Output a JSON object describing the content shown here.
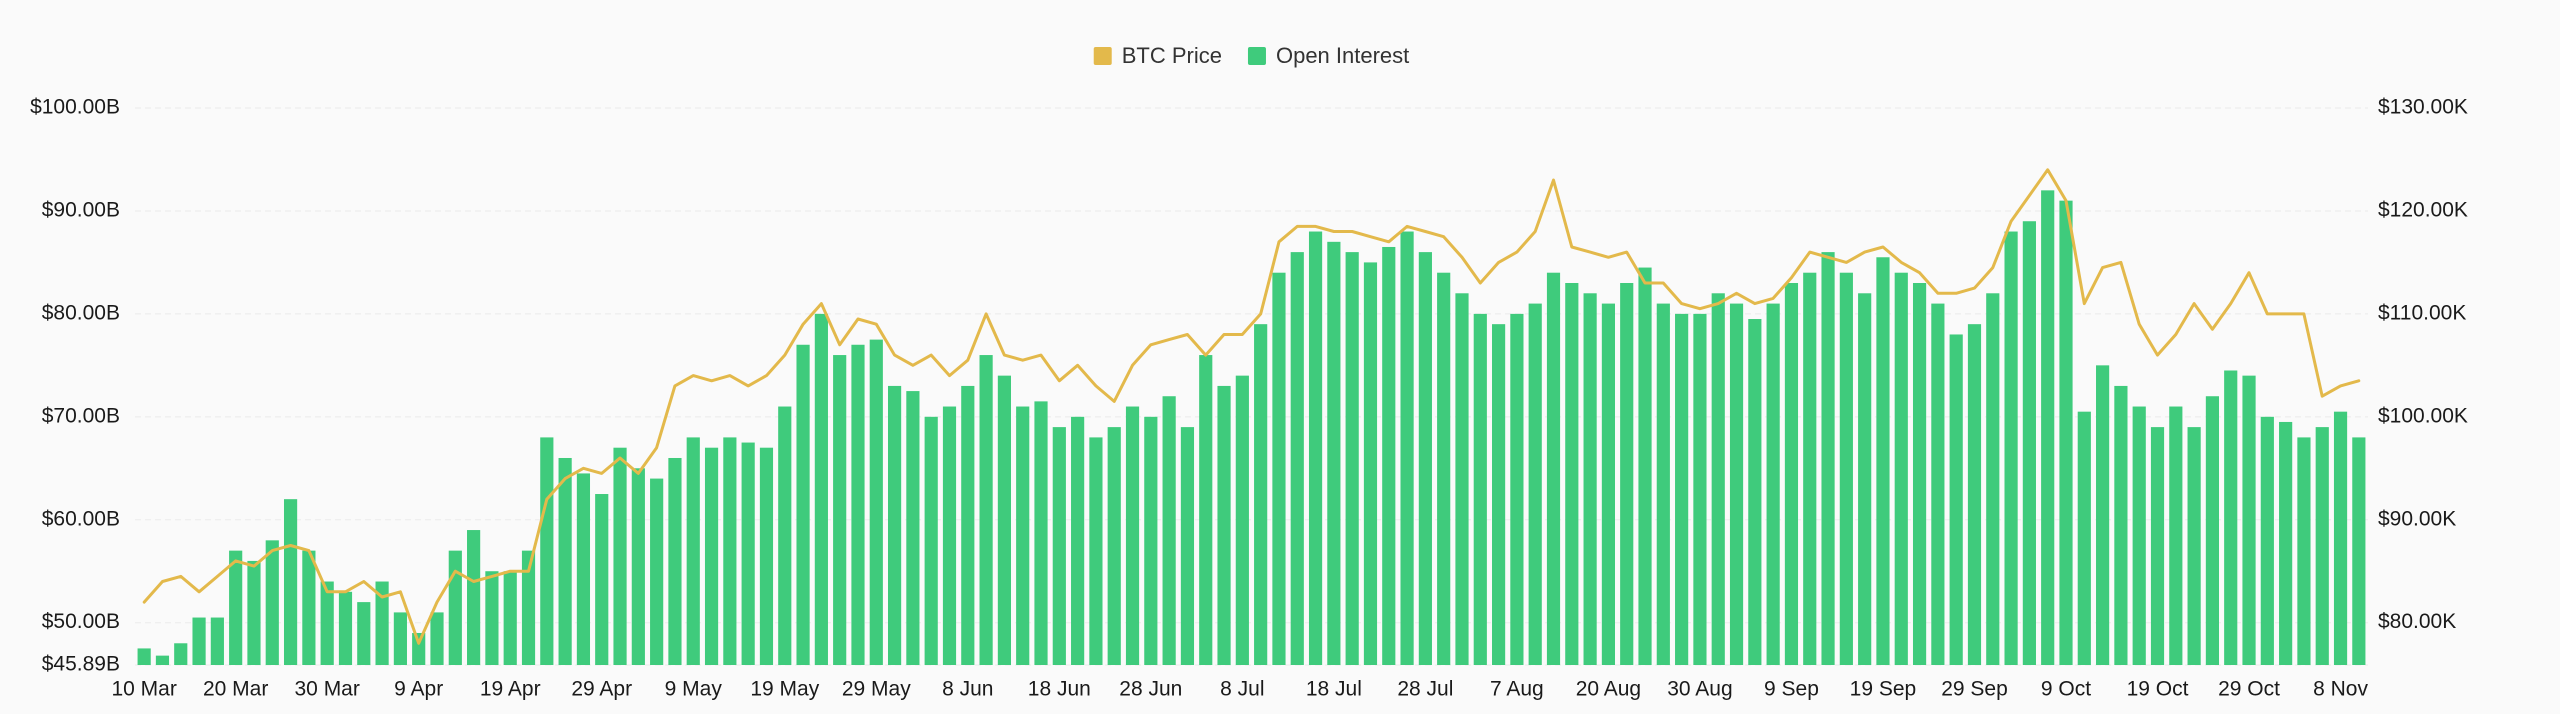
{
  "chart_data": {
    "type": "bar",
    "legend": "top-center",
    "grid": true,
    "categories": [
      "10 Mar",
      null,
      null,
      null,
      null,
      "20 Mar",
      null,
      null,
      null,
      null,
      "30 Mar",
      null,
      null,
      null,
      null,
      "9 Apr",
      null,
      null,
      null,
      null,
      "19 Apr",
      null,
      null,
      null,
      null,
      "29 Apr",
      null,
      null,
      null,
      null,
      "9 May",
      null,
      null,
      null,
      null,
      "19 May",
      null,
      null,
      null,
      null,
      "29 May",
      null,
      null,
      null,
      null,
      "8 Jun",
      null,
      null,
      null,
      null,
      "18 Jun",
      null,
      null,
      null,
      null,
      "28 Jun",
      null,
      null,
      null,
      null,
      "8 Jul",
      null,
      null,
      null,
      null,
      "18 Jul",
      null,
      null,
      null,
      null,
      "28 Jul",
      null,
      null,
      null,
      null,
      "7 Aug",
      null,
      null,
      null,
      null,
      "20 Aug",
      null,
      null,
      null,
      null,
      "30 Aug",
      null,
      null,
      null,
      null,
      "9 Sep",
      null,
      null,
      null,
      null,
      "19 Sep",
      null,
      null,
      null,
      null,
      "29 Sep",
      null,
      null,
      null,
      null,
      "9 Oct",
      null,
      null,
      null,
      null,
      "19 Oct",
      null,
      null,
      null,
      null,
      "29 Oct",
      null,
      null,
      null,
      null,
      "8 Nov",
      null
    ],
    "ylim": [
      45.89,
      100
    ],
    "yticks": [
      {
        "value": 45.89,
        "label": "$45.89B"
      },
      {
        "value": 50,
        "label": "$50.00B"
      },
      {
        "value": 60,
        "label": "$60.00B"
      },
      {
        "value": 70,
        "label": "$70.00B"
      },
      {
        "value": 80,
        "label": "$80.00B"
      },
      {
        "value": 90,
        "label": "$90.00B"
      },
      {
        "value": 100,
        "label": "$100.00B"
      }
    ],
    "y2lim": [
      75.89,
      130
    ],
    "y2ticks": [
      {
        "value": 80,
        "label": "$80.00K"
      },
      {
        "value": 90,
        "label": "$90.00K"
      },
      {
        "value": 100,
        "label": "$100.00K"
      },
      {
        "value": 110,
        "label": "$110.00K"
      },
      {
        "value": 120,
        "label": "$120.00K"
      },
      {
        "value": 130,
        "label": "$130.00K"
      }
    ],
    "series": [
      {
        "name": "BTC Price",
        "color": "#e3b94b",
        "type": "line",
        "axis": "y2",
        "values": [
          82,
          84,
          84.5,
          83,
          84.5,
          86,
          85.5,
          87,
          87.5,
          87,
          83,
          83,
          84,
          82.5,
          83,
          78,
          82,
          85,
          84,
          84.5,
          85,
          85,
          92,
          94,
          95,
          94.5,
          96,
          94.5,
          97,
          103,
          104,
          103.5,
          104,
          103,
          104,
          106,
          109,
          111,
          107,
          109.5,
          109,
          106,
          105,
          106,
          104,
          105.5,
          110,
          106,
          105.5,
          106,
          103.5,
          105,
          103,
          101.5,
          105,
          107,
          107.5,
          108,
          106,
          108,
          108,
          110,
          117,
          118.5,
          118.5,
          118,
          118,
          117.5,
          117,
          118.5,
          118,
          117.5,
          115.5,
          113,
          115,
          116,
          118,
          123,
          116.5,
          116,
          115.5,
          116,
          113,
          113,
          111,
          110.5,
          111,
          112,
          111,
          111.5,
          113.5,
          116,
          115.5,
          115,
          116,
          116.5,
          115,
          114,
          112,
          112,
          112.5,
          114.5,
          119,
          121.5,
          124,
          121,
          111,
          114.5,
          115,
          109,
          106,
          108,
          111,
          108.5,
          111,
          114,
          110,
          110,
          110,
          102,
          103,
          103.5
        ]
      },
      {
        "name": "Open Interest",
        "color": "#3fcb7c",
        "type": "bar",
        "values": [
          47.5,
          46.8,
          48,
          50.5,
          50.5,
          57,
          56,
          58,
          62,
          57,
          54,
          53,
          52,
          54,
          51,
          49,
          51,
          57,
          59,
          55,
          55,
          57,
          68,
          66,
          64.5,
          62.5,
          67,
          65,
          64,
          66,
          68,
          67,
          68,
          67.5,
          67,
          71,
          77,
          80,
          76,
          77,
          77.5,
          73,
          72.5,
          70,
          71,
          73,
          76,
          74,
          71,
          71.5,
          69,
          70,
          68,
          69,
          71,
          70,
          72,
          69,
          76,
          73,
          74,
          79,
          84,
          86,
          88,
          87,
          86,
          85,
          86.5,
          88,
          86,
          84,
          82,
          80,
          79,
          80,
          81,
          84,
          83,
          82,
          81,
          83,
          84.5,
          81,
          80,
          80,
          82,
          81,
          79.5,
          81,
          83,
          84,
          86,
          84,
          82,
          85.5,
          84,
          83,
          81,
          78,
          79,
          82,
          88,
          89,
          92,
          91,
          70.5,
          75,
          73,
          71,
          69,
          71,
          69,
          72,
          74.5,
          74,
          70,
          69.5,
          68,
          69,
          70.5,
          68
        ]
      }
    ]
  }
}
